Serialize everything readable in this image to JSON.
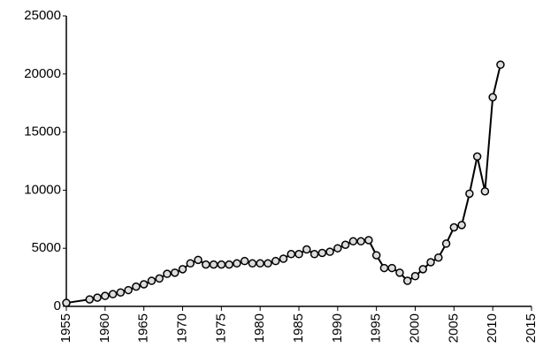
{
  "chart_data": {
    "type": "line",
    "x": [
      1955,
      1958,
      1959,
      1960,
      1961,
      1962,
      1963,
      1964,
      1965,
      1966,
      1967,
      1968,
      1969,
      1970,
      1971,
      1972,
      1973,
      1974,
      1975,
      1976,
      1977,
      1978,
      1979,
      1980,
      1981,
      1982,
      1983,
      1984,
      1985,
      1986,
      1987,
      1988,
      1989,
      1990,
      1991,
      1992,
      1993,
      1994,
      1995,
      1996,
      1997,
      1998,
      1999,
      2000,
      2001,
      2002,
      2003,
      2004,
      2005,
      2006,
      2007,
      2008,
      2009,
      2010,
      2011
    ],
    "values": [
      300,
      600,
      750,
      900,
      1050,
      1200,
      1400,
      1700,
      1900,
      2200,
      2400,
      2800,
      2900,
      3200,
      3700,
      4000,
      3600,
      3600,
      3600,
      3600,
      3700,
      3900,
      3700,
      3700,
      3700,
      3900,
      4100,
      4500,
      4500,
      4900,
      4500,
      4600,
      4700,
      5000,
      5300,
      5600,
      5600,
      5700,
      4400,
      3300,
      3300,
      2900,
      2200,
      2600,
      3200,
      3800,
      4200,
      5400,
      6800,
      7000,
      9700,
      12900,
      9900,
      18000,
      20800
    ],
    "color": "#000000",
    "xlim": [
      1955,
      2015
    ],
    "xticks": [
      1955,
      1960,
      1965,
      1970,
      1975,
      1980,
      1985,
      1990,
      1995,
      2000,
      2005,
      2010,
      2015
    ],
    "ylim": [
      0,
      25000
    ],
    "yticks": [
      0,
      5000,
      10000,
      15000,
      20000,
      25000
    ],
    "grid": false
  }
}
